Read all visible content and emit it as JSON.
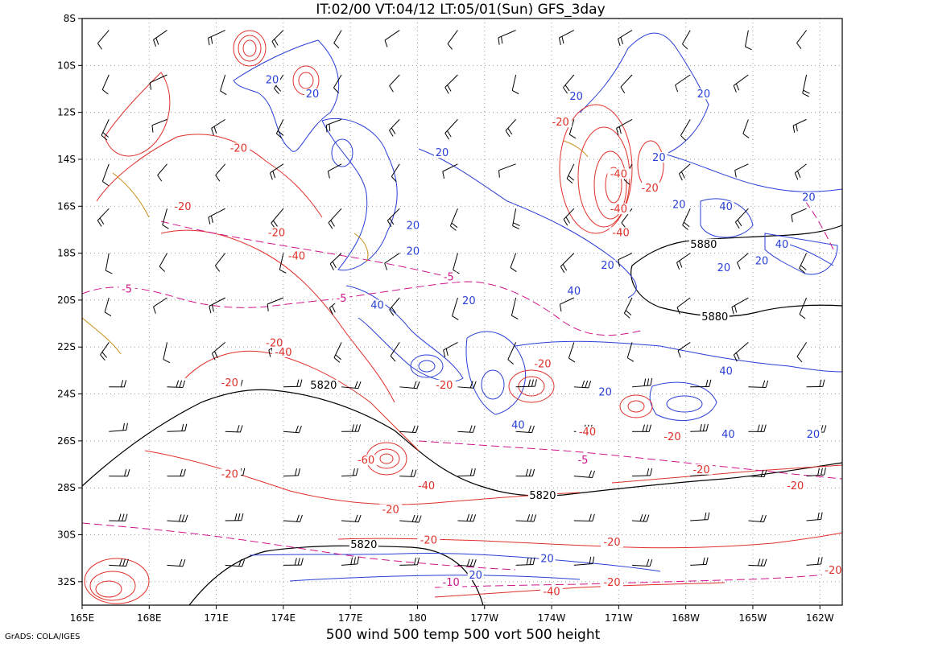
{
  "header": {
    "title": "IT:02/00  VT:04/12  LT:05/01(Sun)  GFS_3day"
  },
  "footer": {
    "caption": "500 wind 500 temp 500 vort 500 height",
    "credit": "GrADS: COLA/IGES"
  },
  "map": {
    "lon_labels": [
      "165E",
      "168E",
      "171E",
      "174E",
      "177E",
      "180",
      "177W",
      "174W",
      "171W",
      "168W",
      "165W",
      "162W"
    ],
    "lat_labels": [
      "8S",
      "10S",
      "12S",
      "14S",
      "16S",
      "18S",
      "20S",
      "22S",
      "24S",
      "26S",
      "28S",
      "30S",
      "32S"
    ],
    "colors": {
      "height": "#000000",
      "vorticity_pos": "#2a3fd6",
      "vorticity_neg": "#e0302a",
      "temperature": "#d0148c",
      "wind_accent": "#c8901a",
      "grid": "#9a9a9a"
    }
  },
  "contour_labels": {
    "height": [
      {
        "text": "5880",
        "lon": -167.2,
        "lat": -17.7
      },
      {
        "text": "5880",
        "lon": -166.7,
        "lat": -20.8
      },
      {
        "text": "5820",
        "lon": 175.8,
        "lat": -23.7
      },
      {
        "text": "5820",
        "lon": -174.4,
        "lat": -28.4
      },
      {
        "text": "5820",
        "lon": 177.6,
        "lat": -30.5
      }
    ],
    "vorticity_pos": [
      {
        "text": "20",
        "lon": 173.5,
        "lat": -10.7
      },
      {
        "text": "20",
        "lon": 175.3,
        "lat": -11.3
      },
      {
        "text": "20",
        "lon": -178.9,
        "lat": -13.8
      },
      {
        "text": "20",
        "lon": -172.9,
        "lat": -11.4
      },
      {
        "text": "20",
        "lon": -167.2,
        "lat": -11.3
      },
      {
        "text": "20",
        "lon": -169.2,
        "lat": -14.0
      },
      {
        "text": "20",
        "lon": -168.3,
        "lat": -16.0
      },
      {
        "text": "40",
        "lon": -166.2,
        "lat": -16.1
      },
      {
        "text": "20",
        "lon": -162.5,
        "lat": -15.7
      },
      {
        "text": "20",
        "lon": 179.8,
        "lat": -16.9
      },
      {
        "text": "20",
        "lon": 179.8,
        "lat": -18.0
      },
      {
        "text": "40",
        "lon": -163.7,
        "lat": -17.7
      },
      {
        "text": "20",
        "lon": -164.6,
        "lat": -18.4
      },
      {
        "text": "20",
        "lon": -166.3,
        "lat": -18.7
      },
      {
        "text": "20",
        "lon": -171.5,
        "lat": -18.6
      },
      {
        "text": "40",
        "lon": -173.0,
        "lat": -19.7
      },
      {
        "text": "20",
        "lon": -177.7,
        "lat": -20.1
      },
      {
        "text": "40",
        "lon": 178.2,
        "lat": -20.3
      },
      {
        "text": "40",
        "lon": -166.2,
        "lat": -23.1
      },
      {
        "text": "20",
        "lon": -171.6,
        "lat": -24.0
      },
      {
        "text": "40",
        "lon": -175.5,
        "lat": -25.4
      },
      {
        "text": "40",
        "lon": -166.1,
        "lat": -25.8
      },
      {
        "text": "20",
        "lon": -162.3,
        "lat": -25.8
      },
      {
        "text": "20",
        "lon": -174.2,
        "lat": -31.1
      },
      {
        "text": "20",
        "lon": -177.4,
        "lat": -31.8
      }
    ],
    "vorticity_neg": [
      {
        "text": "-20",
        "lon": -173.6,
        "lat": -12.5
      },
      {
        "text": "-40",
        "lon": -171.0,
        "lat": -14.7
      },
      {
        "text": "-20",
        "lon": -169.6,
        "lat": -15.3
      },
      {
        "text": "-40",
        "lon": -171.0,
        "lat": -16.2
      },
      {
        "text": "-40",
        "lon": -170.9,
        "lat": -17.2
      },
      {
        "text": "-20",
        "lon": 172.0,
        "lat": -13.6
      },
      {
        "text": "-20",
        "lon": 169.5,
        "lat": -16.1
      },
      {
        "text": "-20",
        "lon": 173.7,
        "lat": -17.2
      },
      {
        "text": "-40",
        "lon": 174.6,
        "lat": -18.2
      },
      {
        "text": "-20",
        "lon": 173.6,
        "lat": -21.9
      },
      {
        "text": "-40",
        "lon": 174.0,
        "lat": -22.3
      },
      {
        "text": "-20",
        "lon": 171.6,
        "lat": -23.6
      },
      {
        "text": "-20",
        "lon": -178.8,
        "lat": -23.7
      },
      {
        "text": "-20",
        "lon": -174.4,
        "lat": -22.8
      },
      {
        "text": "-40",
        "lon": -172.4,
        "lat": -25.7
      },
      {
        "text": "-20",
        "lon": -168.6,
        "lat": -25.9
      },
      {
        "text": "-60",
        "lon": 177.7,
        "lat": -26.9
      },
      {
        "text": "-40",
        "lon": -179.6,
        "lat": -28.0
      },
      {
        "text": "-20",
        "lon": -167.3,
        "lat": -27.3
      },
      {
        "text": "-20",
        "lon": 171.6,
        "lat": -27.5
      },
      {
        "text": "-20",
        "lon": 178.8,
        "lat": -29.0
      },
      {
        "text": "-20",
        "lon": -163.1,
        "lat": -28.0
      },
      {
        "text": "-20",
        "lon": -179.5,
        "lat": -30.3
      },
      {
        "text": "-20",
        "lon": -171.3,
        "lat": -30.4
      },
      {
        "text": "-20",
        "lon": -161.4,
        "lat": -31.6
      },
      {
        "text": "-20",
        "lon": -171.3,
        "lat": -32.1
      },
      {
        "text": "-40",
        "lon": -174.0,
        "lat": -32.5
      }
    ],
    "temperature": [
      {
        "text": "-5",
        "lon": 167.0,
        "lat": -19.6
      },
      {
        "text": "-5",
        "lon": 176.6,
        "lat": -20.0
      },
      {
        "text": "-5",
        "lon": -178.6,
        "lat": -19.1
      },
      {
        "text": "-5",
        "lon": -172.6,
        "lat": -26.9
      },
      {
        "text": "-10",
        "lon": -178.5,
        "lat": -32.1
      }
    ]
  }
}
